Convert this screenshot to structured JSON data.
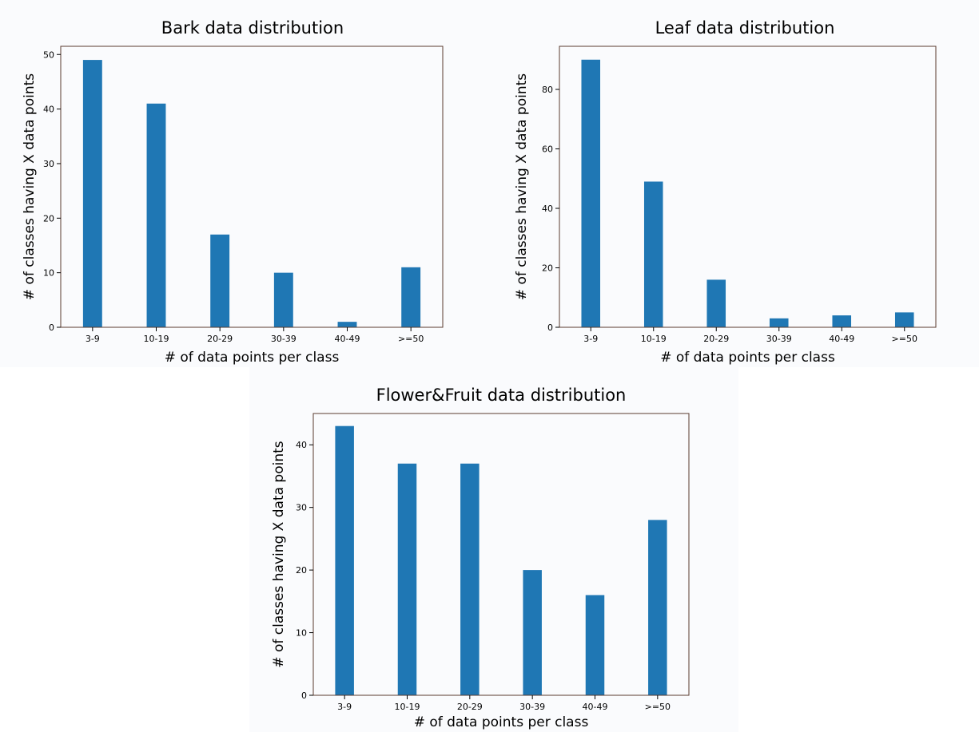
{
  "chart_data": [
    {
      "type": "bar",
      "title": "Bark data distribution",
      "xlabel": "# of data points per class",
      "ylabel": "# of classes having X data points",
      "categories": [
        "3-9",
        "10-19",
        "20-29",
        "30-39",
        "40-49",
        ">=50"
      ],
      "values": [
        49,
        41,
        17,
        10,
        1,
        11
      ],
      "ylim": [
        0,
        51.5
      ],
      "yticks": [
        0,
        10,
        20,
        30,
        40,
        50
      ],
      "bar_color": "#1f77b4",
      "grid": false
    },
    {
      "type": "bar",
      "title": "Leaf data distribution",
      "xlabel": "# of data points per class",
      "ylabel": "# of classes having X data points",
      "categories": [
        "3-9",
        "10-19",
        "20-29",
        "30-39",
        "40-49",
        ">=50"
      ],
      "values": [
        90,
        49,
        16,
        3,
        4,
        5
      ],
      "ylim": [
        0,
        94.5
      ],
      "yticks": [
        0,
        20,
        40,
        60,
        80
      ],
      "bar_color": "#1f77b4",
      "grid": false
    },
    {
      "type": "bar",
      "title": "Flower&Fruit data distribution",
      "xlabel": "# of data points per class",
      "ylabel": "# of classes having X data points",
      "categories": [
        "3-9",
        "10-19",
        "20-29",
        "30-39",
        "40-49",
        ">=50"
      ],
      "values": [
        43,
        37,
        37,
        20,
        16,
        28
      ],
      "ylim": [
        0,
        45
      ],
      "yticks": [
        0,
        10,
        20,
        30,
        40
      ],
      "bar_color": "#1f77b4",
      "grid": false
    }
  ]
}
